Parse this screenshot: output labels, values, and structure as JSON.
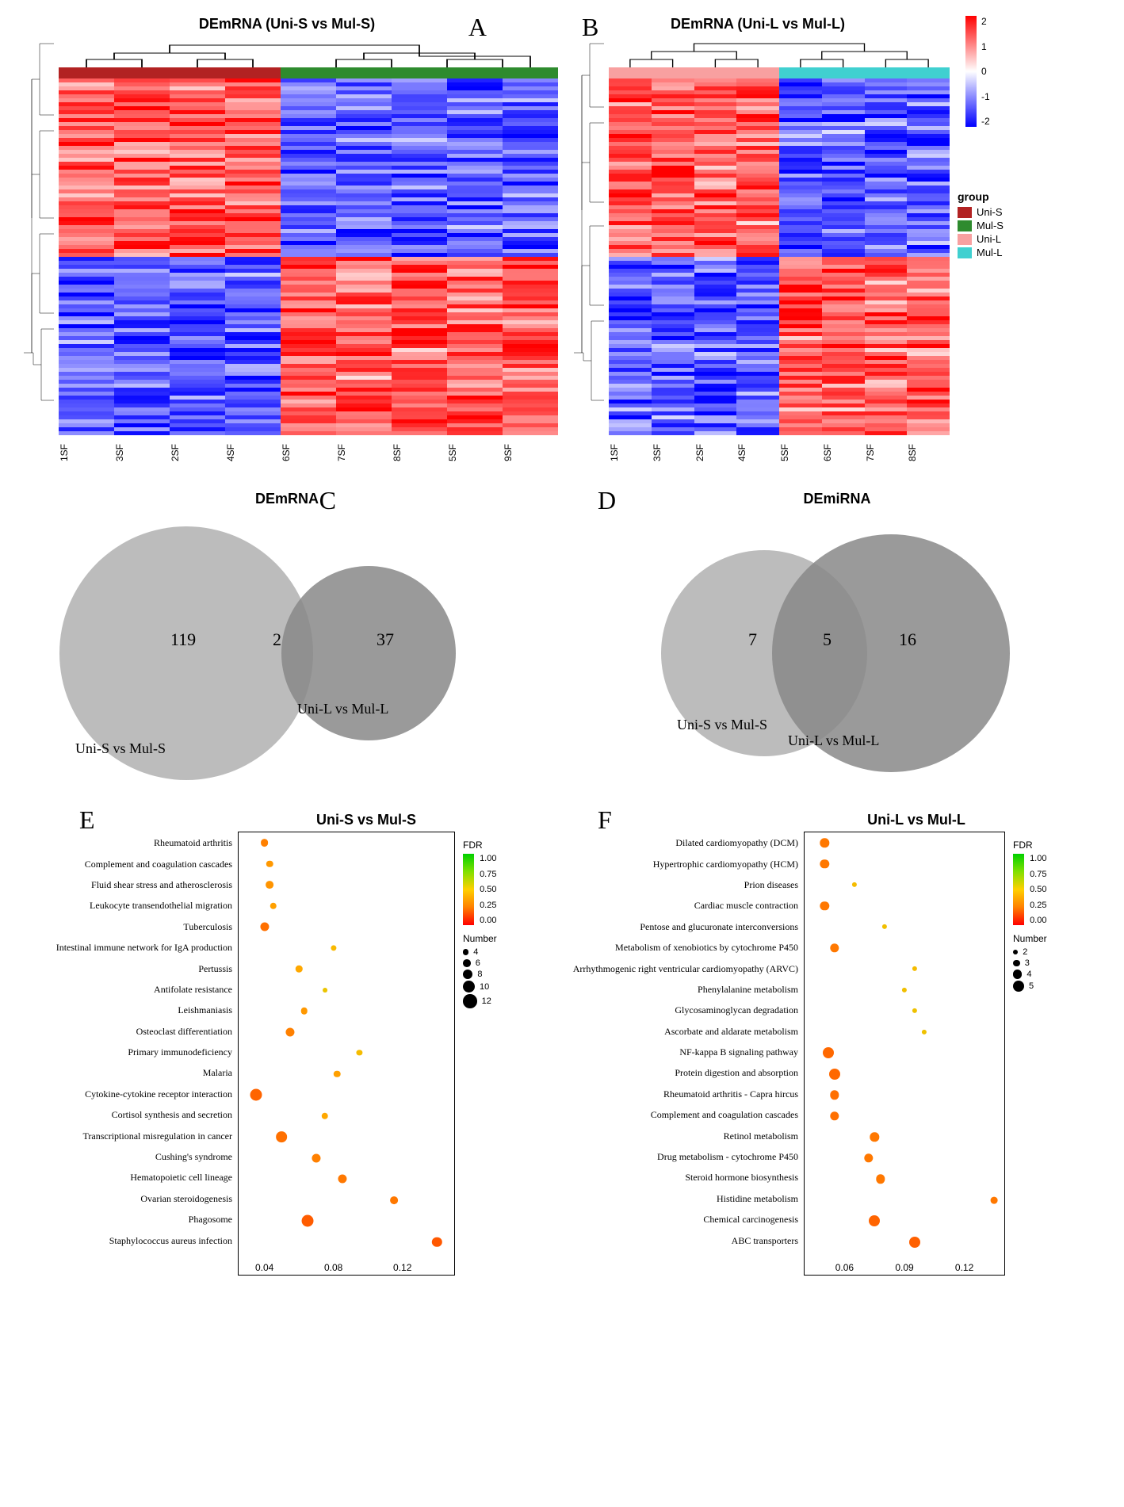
{
  "panels": {
    "A": {
      "label": "A",
      "title": "DEmRNA (Uni-S vs Mul-S)"
    },
    "B": {
      "label": "B",
      "title": "DEmRNA (Uni-L vs Mul-L)"
    },
    "C": {
      "label": "C",
      "title": "DEmRNA"
    },
    "D": {
      "label": "D",
      "title": "DEmiRNA"
    },
    "E": {
      "label": "E",
      "title": "Uni-S vs Mul-S"
    },
    "F": {
      "label": "F",
      "title": "Uni-L vs Mul-L"
    }
  },
  "group_legend": {
    "title": "group",
    "items": [
      {
        "label": "Uni-S",
        "color": "#b22222"
      },
      {
        "label": "Mul-S",
        "color": "#2e8b2e"
      },
      {
        "label": "Uni-L",
        "color": "#f8a0a0"
      },
      {
        "label": "Mul-L",
        "color": "#40d0d0"
      }
    ]
  },
  "scale_ticks": [
    "2",
    "1",
    "0",
    "-1",
    "-2"
  ],
  "heatmap_A": {
    "group_bar": [
      "#b22222",
      "#b22222",
      "#b22222",
      "#b22222",
      "#2e8b2e",
      "#2e8b2e",
      "#2e8b2e",
      "#2e8b2e",
      "#2e8b2e"
    ],
    "x_labels": [
      "1SF",
      "3SF",
      "2SF",
      "4SF",
      "6SF",
      "7SF",
      "8SF",
      "5SF",
      "9SF"
    ],
    "rows": 90,
    "cols": 9
  },
  "heatmap_B": {
    "group_bar": [
      "#f8a0a0",
      "#f8a0a0",
      "#f8a0a0",
      "#f8a0a0",
      "#40d0d0",
      "#40d0d0",
      "#40d0d0",
      "#40d0d0"
    ],
    "x_labels": [
      "1SF",
      "3SF",
      "2SF",
      "4SF",
      "5SF",
      "6SF",
      "7SF",
      "8SF"
    ],
    "rows": 90,
    "cols": 8
  },
  "venn_C": {
    "left": {
      "count": "119",
      "label": "Uni-S vs Mul-S",
      "color": "#b0b0b0"
    },
    "right": {
      "count": "37",
      "label": "Uni-L vs Mul-L",
      "color": "#888888"
    },
    "overlap": "2"
  },
  "venn_D": {
    "left": {
      "count": "7",
      "label": "Uni-S vs Mul-S",
      "color": "#b0b0b0"
    },
    "right": {
      "count": "16",
      "label": "Uni-L vs Mul-L",
      "color": "#888888"
    },
    "overlap": "5"
  },
  "bubble_E": {
    "x_ticks": [
      0.04,
      0.08,
      0.12
    ],
    "x_min": 0.025,
    "x_max": 0.15,
    "fdr_ticks": [
      "1.00",
      "0.75",
      "0.50",
      "0.25",
      "0.00"
    ],
    "number_legend": [
      4,
      6,
      8,
      10,
      12
    ],
    "terms": [
      {
        "label": "Rheumatoid arthritis",
        "x": 0.04,
        "size": 6,
        "fdr": 0.12
      },
      {
        "label": "Complement and coagulation cascades",
        "x": 0.043,
        "size": 5,
        "fdr": 0.18
      },
      {
        "label": "Fluid shear stress and atherosclerosis",
        "x": 0.043,
        "size": 6,
        "fdr": 0.17
      },
      {
        "label": "Leukocyte transendothelial migration",
        "x": 0.045,
        "size": 5,
        "fdr": 0.2
      },
      {
        "label": "Tuberculosis",
        "x": 0.04,
        "size": 7,
        "fdr": 0.08
      },
      {
        "label": "Intestinal immune network for IgA production",
        "x": 0.08,
        "size": 4,
        "fdr": 0.28
      },
      {
        "label": "Pertussis",
        "x": 0.06,
        "size": 5,
        "fdr": 0.22
      },
      {
        "label": "Antifolate resistance",
        "x": 0.075,
        "size": 3,
        "fdr": 0.35
      },
      {
        "label": "Leishmaniasis",
        "x": 0.063,
        "size": 5,
        "fdr": 0.18
      },
      {
        "label": "Osteoclast differentiation",
        "x": 0.055,
        "size": 7,
        "fdr": 0.12
      },
      {
        "label": "Primary immunodeficiency",
        "x": 0.095,
        "size": 4,
        "fdr": 0.3
      },
      {
        "label": "Malaria",
        "x": 0.082,
        "size": 5,
        "fdr": 0.2
      },
      {
        "label": "Cytokine-cytokine receptor interaction",
        "x": 0.035,
        "size": 10,
        "fdr": 0.05
      },
      {
        "label": "Cortisol synthesis and secretion",
        "x": 0.075,
        "size": 5,
        "fdr": 0.22
      },
      {
        "label": "Transcriptional misregulation in cancer",
        "x": 0.05,
        "size": 9,
        "fdr": 0.08
      },
      {
        "label": "Cushing's syndrome",
        "x": 0.07,
        "size": 7,
        "fdr": 0.12
      },
      {
        "label": "Hematopoietic cell lineage",
        "x": 0.085,
        "size": 7,
        "fdr": 0.1
      },
      {
        "label": "Ovarian steroidogenesis",
        "x": 0.115,
        "size": 6,
        "fdr": 0.1
      },
      {
        "label": "Phagosome",
        "x": 0.065,
        "size": 10,
        "fdr": 0.03
      },
      {
        "label": "Staphylococcus aureus infection",
        "x": 0.14,
        "size": 8,
        "fdr": 0.02
      }
    ]
  },
  "bubble_F": {
    "x_ticks": [
      0.06,
      0.09,
      0.12
    ],
    "x_min": 0.04,
    "x_max": 0.14,
    "fdr_ticks": [
      "1.00",
      "0.75",
      "0.50",
      "0.25",
      "0.00"
    ],
    "number_legend": [
      2,
      3,
      4,
      5
    ],
    "terms": [
      {
        "label": "Dilated cardiomyopathy (DCM)",
        "x": 0.05,
        "size": 4,
        "fdr": 0.1
      },
      {
        "label": "Hypertrophic cardiomyopathy (HCM)",
        "x": 0.05,
        "size": 4,
        "fdr": 0.1
      },
      {
        "label": "Prion diseases",
        "x": 0.065,
        "size": 2,
        "fdr": 0.3
      },
      {
        "label": "Cardiac muscle contraction",
        "x": 0.05,
        "size": 4,
        "fdr": 0.1
      },
      {
        "label": "Pentose and glucuronate interconversions",
        "x": 0.08,
        "size": 2,
        "fdr": 0.32
      },
      {
        "label": "Metabolism of xenobiotics by cytochrome P450",
        "x": 0.055,
        "size": 4,
        "fdr": 0.1
      },
      {
        "label": "Arrhythmogenic right ventricular cardiomyopathy (ARVC)",
        "x": 0.095,
        "size": 2,
        "fdr": 0.3
      },
      {
        "label": "Phenylalanine metabolism",
        "x": 0.09,
        "size": 2,
        "fdr": 0.32
      },
      {
        "label": "Glycosaminoglycan degradation",
        "x": 0.095,
        "size": 2,
        "fdr": 0.33
      },
      {
        "label": "Ascorbate and aldarate metabolism",
        "x": 0.1,
        "size": 2,
        "fdr": 0.33
      },
      {
        "label": "NF-kappa B signaling pathway",
        "x": 0.052,
        "size": 5,
        "fdr": 0.06
      },
      {
        "label": "Protein digestion and absorption",
        "x": 0.055,
        "size": 5,
        "fdr": 0.06
      },
      {
        "label": "Rheumatoid arthritis - Capra hircus",
        "x": 0.055,
        "size": 4,
        "fdr": 0.08
      },
      {
        "label": "Complement and coagulation cascades",
        "x": 0.055,
        "size": 4,
        "fdr": 0.08
      },
      {
        "label": "Retinol metabolism",
        "x": 0.075,
        "size": 4,
        "fdr": 0.1
      },
      {
        "label": "Drug metabolism - cytochrome P450",
        "x": 0.072,
        "size": 4,
        "fdr": 0.1
      },
      {
        "label": "Steroid hormone biosynthesis",
        "x": 0.078,
        "size": 4,
        "fdr": 0.1
      },
      {
        "label": "Histidine metabolism",
        "x": 0.135,
        "size": 3,
        "fdr": 0.1
      },
      {
        "label": "Chemical carcinogenesis",
        "x": 0.075,
        "size": 5,
        "fdr": 0.05
      },
      {
        "label": "ABC transporters",
        "x": 0.095,
        "size": 5,
        "fdr": 0.04
      }
    ]
  }
}
